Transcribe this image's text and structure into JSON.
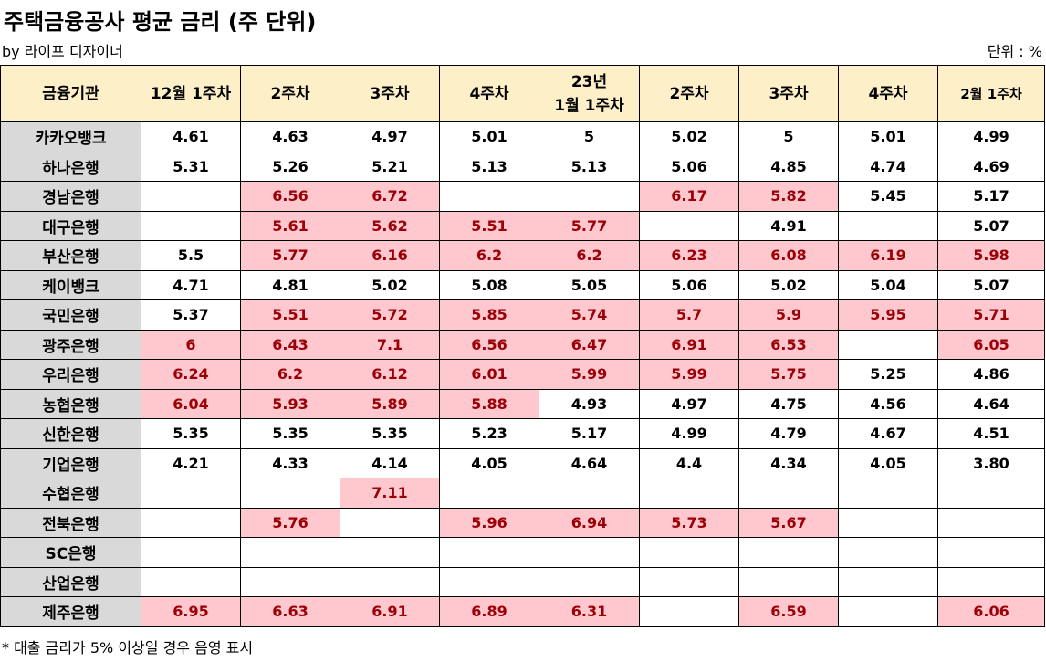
{
  "title": "주택금융공사 평균 금리 (주 단위)",
  "byline": "by 라이프 디자이너",
  "unit_label": "단위 : %",
  "footnote": "* 대출 금리가 5% 이상일 경우 음영 표시",
  "highlight_threshold": 5,
  "colors": {
    "header_bg": "#fdefc8",
    "bank_bg": "#d9d9d9",
    "highlight_bg": "#ffc7ce",
    "highlight_text": "#9c0006"
  },
  "table": {
    "header_first": "금융기관",
    "columns": [
      {
        "line1": "12월 1주차"
      },
      {
        "line1": "2주차"
      },
      {
        "line1": "3주차"
      },
      {
        "line1": "4주차"
      },
      {
        "line1": "23년",
        "line2": "1월 1주차"
      },
      {
        "line1": "2주차"
      },
      {
        "line1": "3주차"
      },
      {
        "line1": "4주차"
      },
      {
        "line1": "2월 1주차",
        "small": true
      }
    ],
    "rows": [
      {
        "bank": "카카오뱅크",
        "values": [
          "4.61",
          "4.63",
          "4.97",
          "5.01",
          "5",
          "5.02",
          "5",
          "5.01",
          "4.99"
        ],
        "shaded": [
          false,
          false,
          false,
          false,
          false,
          false,
          false,
          false,
          false
        ]
      },
      {
        "bank": "하나은행",
        "values": [
          "5.31",
          "5.26",
          "5.21",
          "5.13",
          "5.13",
          "5.06",
          "4.85",
          "4.74",
          "4.69"
        ],
        "shaded": [
          false,
          false,
          false,
          false,
          false,
          false,
          false,
          false,
          false
        ]
      },
      {
        "bank": "경남은행",
        "values": [
          "",
          "6.56",
          "6.72",
          "",
          "",
          "6.17",
          "5.82",
          "5.45",
          "5.17"
        ],
        "shaded": [
          false,
          true,
          true,
          false,
          false,
          true,
          true,
          false,
          false
        ]
      },
      {
        "bank": "대구은행",
        "values": [
          "",
          "5.61",
          "5.62",
          "5.51",
          "5.77",
          "",
          "4.91",
          "",
          "5.07"
        ],
        "shaded": [
          false,
          true,
          true,
          true,
          true,
          false,
          false,
          false,
          false
        ]
      },
      {
        "bank": "부산은행",
        "values": [
          "5.5",
          "5.77",
          "6.16",
          "6.2",
          "6.2",
          "6.23",
          "6.08",
          "6.19",
          "5.98"
        ],
        "shaded": [
          false,
          true,
          true,
          true,
          true,
          true,
          true,
          true,
          true
        ]
      },
      {
        "bank": "케이뱅크",
        "values": [
          "4.71",
          "4.81",
          "5.02",
          "5.08",
          "5.05",
          "5.06",
          "5.02",
          "5.04",
          "5.07"
        ],
        "shaded": [
          false,
          false,
          false,
          false,
          false,
          false,
          false,
          false,
          false
        ]
      },
      {
        "bank": "국민은행",
        "values": [
          "5.37",
          "5.51",
          "5.72",
          "5.85",
          "5.74",
          "5.7",
          "5.9",
          "5.95",
          "5.71"
        ],
        "shaded": [
          false,
          true,
          true,
          true,
          true,
          true,
          true,
          true,
          true
        ]
      },
      {
        "bank": "광주은행",
        "values": [
          "6",
          "6.43",
          "7.1",
          "6.56",
          "6.47",
          "6.91",
          "6.53",
          "",
          "6.05"
        ],
        "shaded": [
          true,
          true,
          true,
          true,
          true,
          true,
          true,
          false,
          true
        ]
      },
      {
        "bank": "우리은행",
        "values": [
          "6.24",
          "6.2",
          "6.12",
          "6.01",
          "5.99",
          "5.99",
          "5.75",
          "5.25",
          "4.86"
        ],
        "shaded": [
          true,
          true,
          true,
          true,
          true,
          true,
          true,
          false,
          false
        ]
      },
      {
        "bank": "농협은행",
        "values": [
          "6.04",
          "5.93",
          "5.89",
          "5.88",
          "4.93",
          "4.97",
          "4.75",
          "4.56",
          "4.64"
        ],
        "shaded": [
          true,
          true,
          true,
          true,
          false,
          false,
          false,
          false,
          false
        ]
      },
      {
        "bank": "신한은행",
        "values": [
          "5.35",
          "5.35",
          "5.35",
          "5.23",
          "5.17",
          "4.99",
          "4.79",
          "4.67",
          "4.51"
        ],
        "shaded": [
          false,
          false,
          false,
          false,
          false,
          false,
          false,
          false,
          false
        ]
      },
      {
        "bank": "기업은행",
        "values": [
          "4.21",
          "4.33",
          "4.14",
          "4.05",
          "4.64",
          "4.4",
          "4.34",
          "4.05",
          "3.80"
        ],
        "shaded": [
          false,
          false,
          false,
          false,
          false,
          false,
          false,
          false,
          false
        ]
      },
      {
        "bank": "수협은행",
        "values": [
          "",
          "",
          "7.11",
          "",
          "",
          "",
          "",
          "",
          ""
        ],
        "shaded": [
          false,
          false,
          true,
          false,
          false,
          false,
          false,
          false,
          false
        ]
      },
      {
        "bank": "전북은행",
        "values": [
          "",
          "5.76",
          "",
          "5.96",
          "6.94",
          "5.73",
          "5.67",
          "",
          ""
        ],
        "shaded": [
          false,
          true,
          false,
          true,
          true,
          true,
          true,
          false,
          false
        ]
      },
      {
        "bank": "SC은행",
        "values": [
          "",
          "",
          "",
          "",
          "",
          "",
          "",
          "",
          ""
        ],
        "shaded": [
          false,
          false,
          false,
          false,
          false,
          false,
          false,
          false,
          false
        ]
      },
      {
        "bank": "산업은행",
        "values": [
          "",
          "",
          "",
          "",
          "",
          "",
          "",
          "",
          ""
        ],
        "shaded": [
          false,
          false,
          false,
          false,
          false,
          false,
          false,
          false,
          false
        ]
      },
      {
        "bank": "제주은행",
        "values": [
          "6.95",
          "6.63",
          "6.91",
          "6.89",
          "6.31",
          "",
          "6.59",
          "",
          "6.06"
        ],
        "shaded": [
          true,
          true,
          true,
          true,
          true,
          false,
          true,
          false,
          true
        ]
      }
    ]
  }
}
